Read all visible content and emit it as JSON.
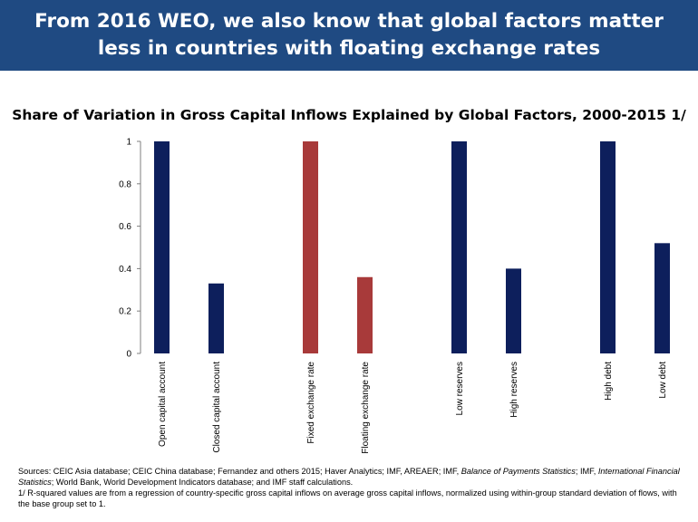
{
  "header": {
    "title": "From 2016 WEO, we also know that global factors matter less in countries with floating exchange rates"
  },
  "colors": {
    "header_bg": "#1f4a82",
    "navy": "#0d1f5c",
    "red": "#a83a3a"
  },
  "chart_data": {
    "type": "bar",
    "title": "Share of Variation in Gross Capital Inflows Explained by Global Factors, 2000-2015 1/",
    "xlabel": "",
    "ylabel": "",
    "ylim": [
      0,
      1
    ],
    "yticks": [
      "0",
      "0.2",
      "0.4",
      "0.6",
      "0.8",
      "1"
    ],
    "grid": false,
    "legend": "none",
    "groups": [
      {
        "categories": [
          "Open capital account",
          "Closed capital account"
        ],
        "values": [
          1,
          0.33
        ],
        "color": "navy"
      },
      {
        "categories": [
          "Fixed exchange rate",
          "Floating exchange rate"
        ],
        "values": [
          1,
          0.36
        ],
        "color": "red"
      },
      {
        "categories": [
          "Low reserves",
          "High reserves"
        ],
        "values": [
          1,
          0.4
        ],
        "color": "navy"
      },
      {
        "categories": [
          "High debt",
          "Low debt"
        ],
        "values": [
          1,
          0.52
        ],
        "color": "navy"
      }
    ]
  },
  "footer": {
    "sources_lead": "Sources: CEIC Asia database; CEIC China database; Fernandez and others 2015; Haver Analytics; IMF, AREAER; IMF, ",
    "sources_italic1": "Balance of Payments Statistics",
    "sources_mid": "; IMF, ",
    "sources_italic2": "International Financial Statistics",
    "sources_tail": "; World Bank, World Development Indicators database; and IMF staff calculations.",
    "note": "1/ R-squared values are from a regression of country-specific gross capital inflows on average gross capital inflows, normalized using within-group standard deviation of flows, with the base group set to 1."
  }
}
